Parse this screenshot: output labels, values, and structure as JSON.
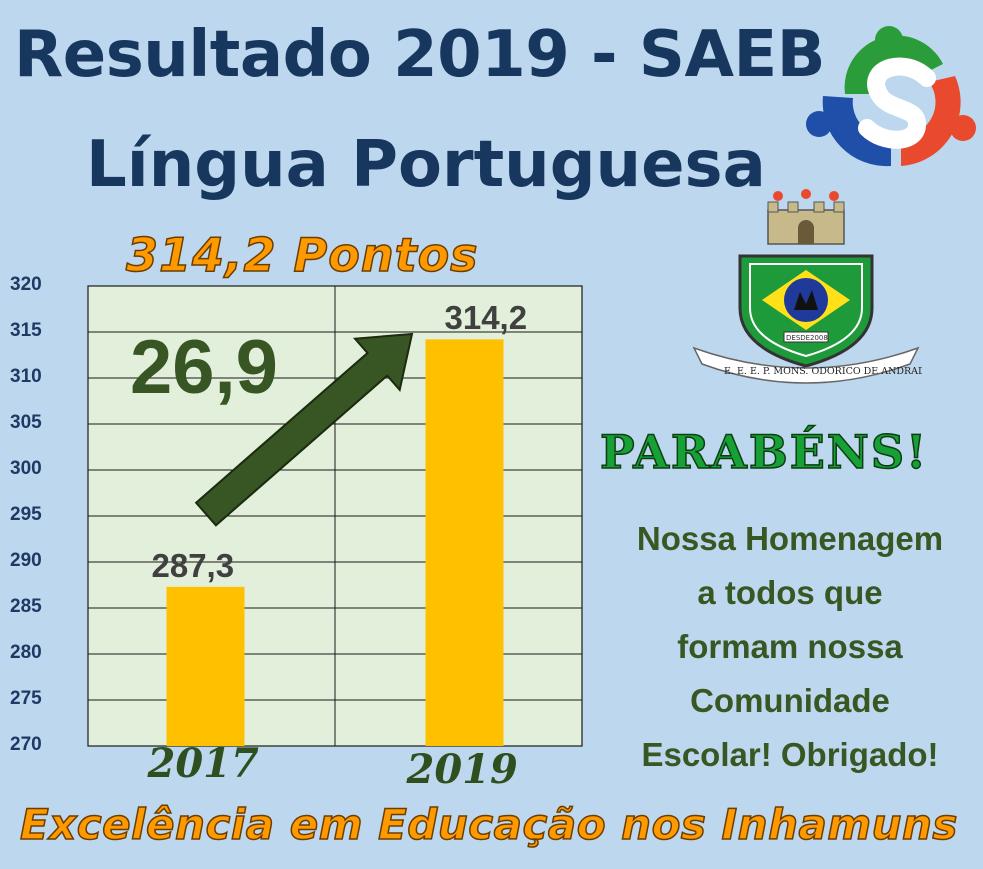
{
  "title": {
    "line1": "Resultado 2019 - SAEB",
    "line2": "Língua Portuguesa"
  },
  "headline": "314,2 Pontos",
  "increase_label": "26,9",
  "congrats": "PARABÉNS!",
  "message_lines": [
    "Nossa Homenagem",
    "a todos que",
    "formam nossa",
    "Comunidade",
    "Escolar! Obrigado!"
  ],
  "footer": "Excelência em Educação nos Inhamuns",
  "crest": {
    "desde": "DESDE",
    "year": "2008",
    "banner": "E. E. E. P. MONS. ODORICO DE ANDRADE"
  },
  "colors": {
    "background": "#bdd7ee",
    "bar": "#ffc000",
    "plot_bg": "#e2efda",
    "arrow": "#375623",
    "title": "#17375e",
    "orange": "#ff9900",
    "green": "#16a036"
  },
  "chart_data": {
    "type": "bar",
    "categories": [
      "2017",
      "2019"
    ],
    "values": [
      287.3,
      314.2
    ],
    "value_labels": [
      "287,3",
      "314,2"
    ],
    "ylim": [
      270,
      320
    ],
    "yticks": [
      270,
      275,
      280,
      285,
      290,
      295,
      300,
      305,
      310,
      315,
      320
    ],
    "grid": true
  }
}
